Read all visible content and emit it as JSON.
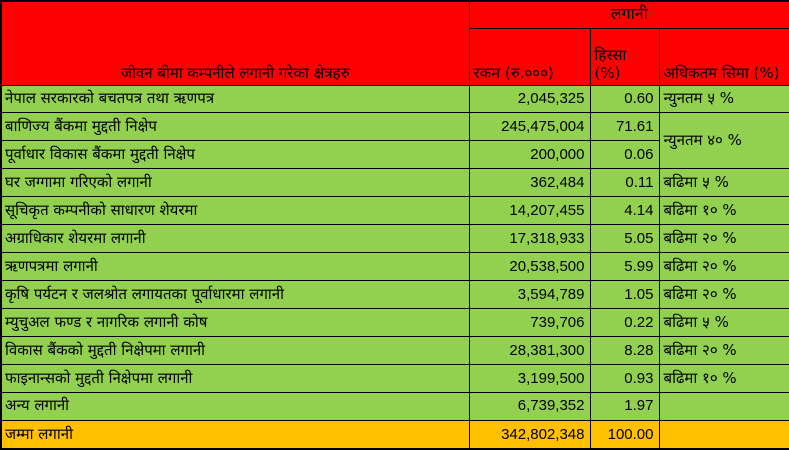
{
  "header": {
    "sector_column_title": "जीवन बीमा कम्पनीले लगानी गरेका क्षेत्रहरु",
    "group_title": "लगानी",
    "amount_label": "रकम (रु.०००)",
    "share_label": "हिस्सा (%)",
    "limit_label": "अधिकतम सिमा (%)"
  },
  "colors": {
    "header_bg": "#FF0000",
    "body_bg": "#92D050",
    "total_bg": "#FFC000",
    "border": "#000000",
    "text": "#000000"
  },
  "chart_data": {
    "type": "table",
    "title": "जीवन बीमा कम्पनीले लगानी गरेका क्षेत्रहरु",
    "group_header": "लगानी",
    "amount_units": "रु.०००",
    "columns": [
      "जीवन बीमा कम्पनीले लगानी गरेका क्षेत्रहरु",
      "रकम (रु.०००)",
      "हिस्सा (%)",
      "अधिकतम सिमा (%)"
    ],
    "rows": [
      {
        "sector": "नेपाल सरकारको बचतपत्र तथा ऋणपत्र",
        "amount": "2,045,325",
        "amount_value": 2045325,
        "share": "0.60",
        "share_value": 0.6,
        "limit": "न्युनतम ५ %"
      },
      {
        "sector": "बाणिज्य बैंकमा मुद्दती निक्षेप",
        "amount": "245,475,004",
        "amount_value": 245475004,
        "share": "71.61",
        "share_value": 71.61,
        "limit": "न्युनतम ४० %",
        "limit_rowspan": 2
      },
      {
        "sector": "पूर्वाधार विकास बैंकमा मुद्दती निक्षेप",
        "amount": "200,000",
        "amount_value": 200000,
        "share": "0.06",
        "share_value": 0.06,
        "limit": null
      },
      {
        "sector": "घर जग्गामा गरिएको लगानी",
        "amount": "362,484",
        "amount_value": 362484,
        "share": "0.11",
        "share_value": 0.11,
        "limit": "बढिमा ५ %"
      },
      {
        "sector": "सूचिकृत कम्पनीको साधारण शेयरमा",
        "amount": "14,207,455",
        "amount_value": 14207455,
        "share": "4.14",
        "share_value": 4.14,
        "limit": "बढिमा १० %"
      },
      {
        "sector": "अग्राधिकार शेयरमा लगानी",
        "amount": "17,318,933",
        "amount_value": 17318933,
        "share": "5.05",
        "share_value": 5.05,
        "limit": "बढिमा २० %"
      },
      {
        "sector": "ऋणपत्रमा लगानी",
        "amount": "20,538,500",
        "amount_value": 20538500,
        "share": "5.99",
        "share_value": 5.99,
        "limit": "बढिमा २० %"
      },
      {
        "sector": "कृषि पर्यटन र जलश्रोत लगायतका पूर्वाधारमा लगानी",
        "amount": "3,594,789",
        "amount_value": 3594789,
        "share": "1.05",
        "share_value": 1.05,
        "limit": "बढिमा २० %"
      },
      {
        "sector": "म्युचुअल फण्ड र नागरिक लगानी कोष",
        "amount": "739,706",
        "amount_value": 739706,
        "share": "0.22",
        "share_value": 0.22,
        "limit": "बढिमा ५ %"
      },
      {
        "sector": "विकास बैंकको मुद्दती निक्षेपमा लगानी",
        "amount": "28,381,300",
        "amount_value": 28381300,
        "share": "8.28",
        "share_value": 8.28,
        "limit": "बढिमा २० %"
      },
      {
        "sector": "फाइनान्सको मुद्दती निक्षेपमा लगानी",
        "amount": "3,199,500",
        "amount_value": 3199500,
        "share": "0.93",
        "share_value": 0.93,
        "limit": "बढिमा १० %"
      },
      {
        "sector": "अन्य लगानी",
        "amount": "6,739,352",
        "amount_value": 6739352,
        "share": "1.97",
        "share_value": 1.97,
        "limit": ""
      }
    ],
    "total_row": {
      "sector": "जम्मा लगानी",
      "amount": "342,802,348",
      "amount_value": 342802348,
      "share": "100.00",
      "share_value": 100.0,
      "limit": ""
    }
  }
}
